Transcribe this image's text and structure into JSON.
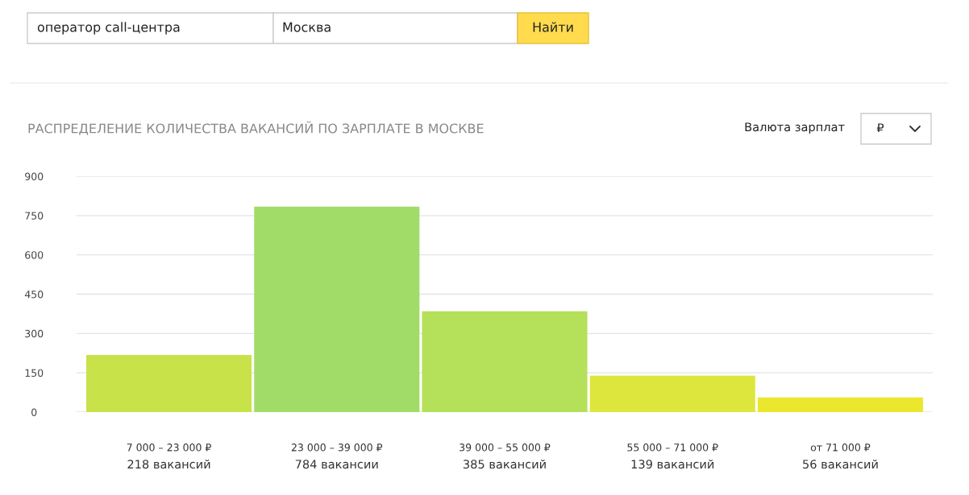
{
  "chart_data": {
    "type": "bar",
    "title": "РАСПРЕДЕЛЕНИЕ КОЛИЧЕСТВА ВАКАНСИЙ ПО ЗАРПЛАТЕ В МОСКВЕ",
    "categories": [
      "7 000 – 23 000 ₽",
      "23 000 – 39 000 ₽",
      "39 000 – 55 000 ₽",
      "55 000 – 71 000 ₽",
      "от 71 000 ₽"
    ],
    "values": [
      218,
      784,
      385,
      139,
      56
    ],
    "colors": [
      "#c8e24a",
      "#a2dc68",
      "#b4e05a",
      "#dde63c",
      "#ebe72c"
    ],
    "value_labels": [
      "218 вакансий",
      "784 вакансии",
      "385 вакансий",
      "139 вакансий",
      "56 вакансий"
    ],
    "ylim": [
      0,
      900
    ],
    "yticks": [
      0,
      150,
      300,
      450,
      600,
      750,
      900
    ],
    "grid": "y",
    "annotations": [
      "оператор call-центра",
      "Москва",
      "Найти",
      "Валюта зарплат",
      "₽"
    ]
  }
}
